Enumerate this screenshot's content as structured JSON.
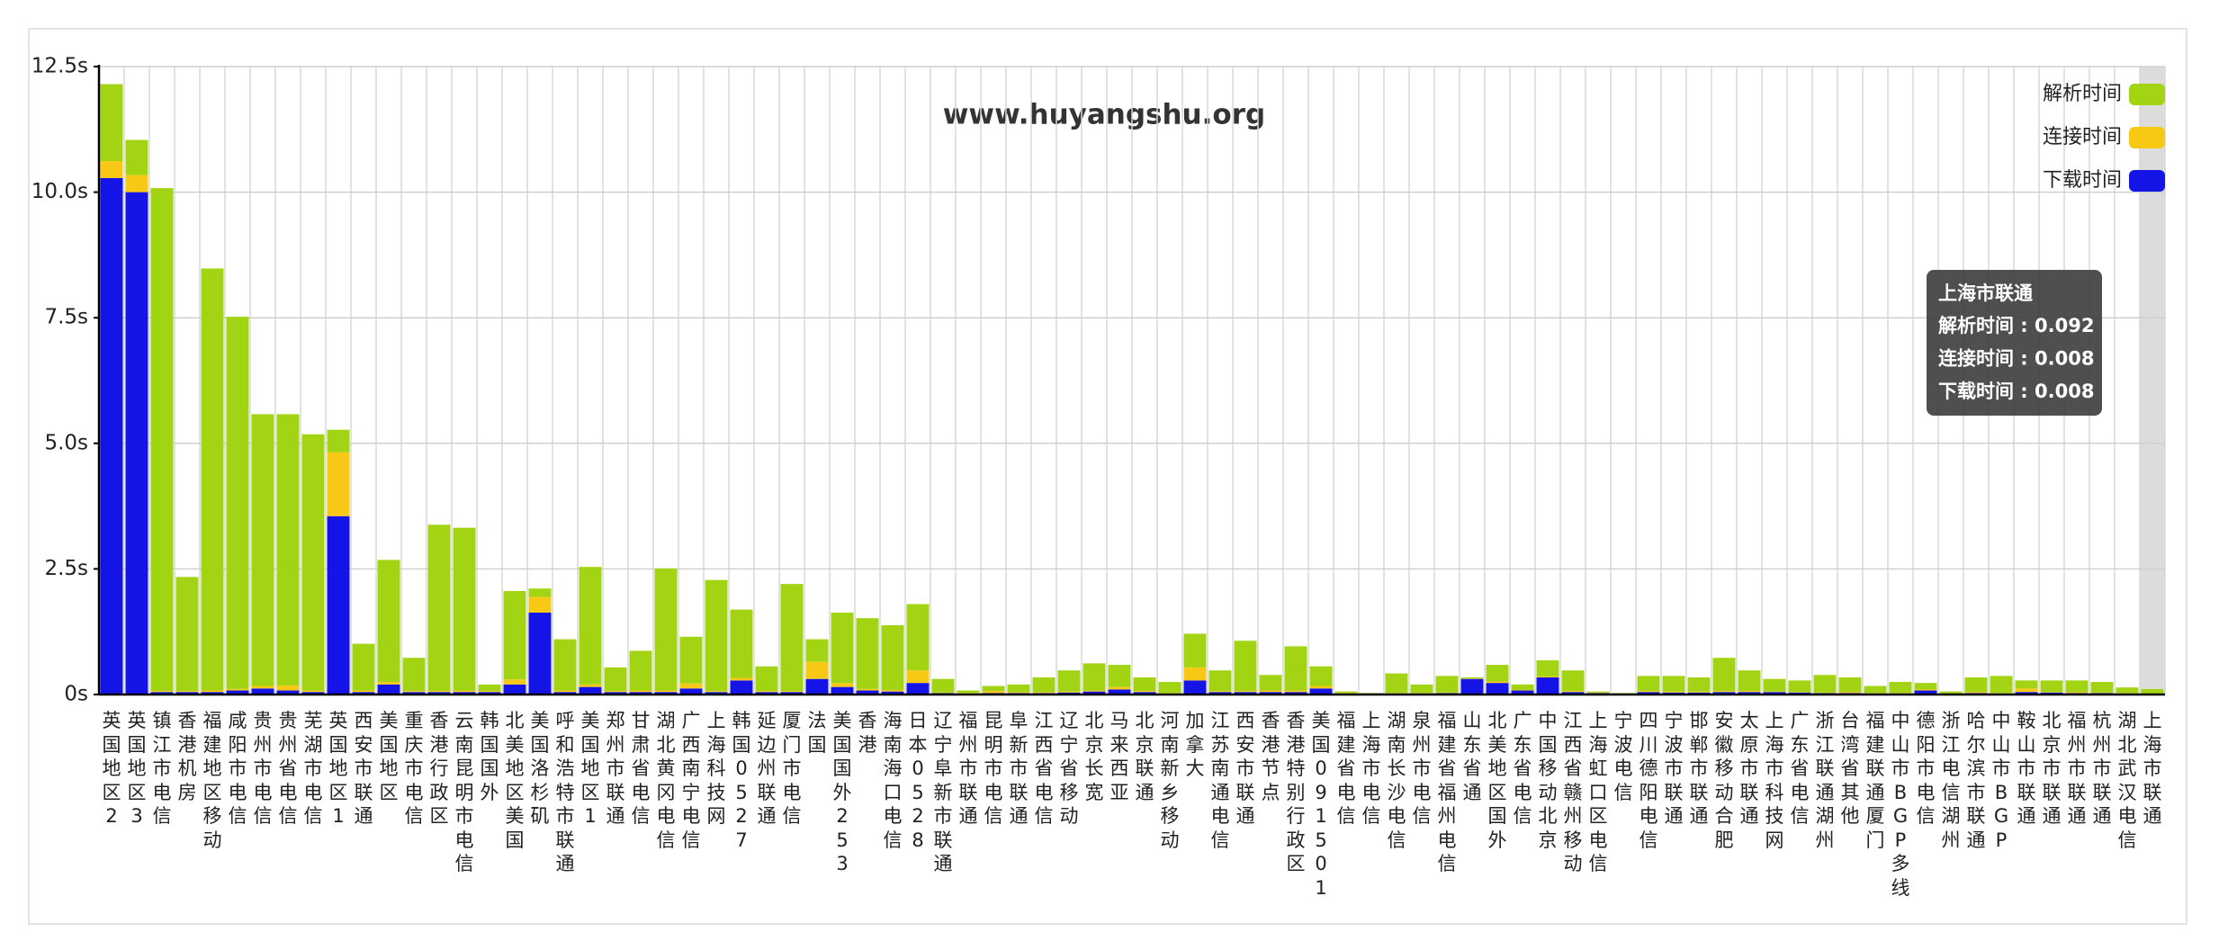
{
  "chart_data": {
    "type": "stacked_bar",
    "annotation": "www.huyangshu.org",
    "categories": [
      "英国地区2",
      "英国地区3",
      "镇江市电信",
      "香港机房",
      "福建地区移动",
      "咸阳市电信",
      "贵州市电信",
      "贵州省电信",
      "芜湖市电信",
      "英国地区1",
      "西安市联通",
      "美国地区",
      "重庆市电信",
      "香港行政区",
      "云南昆明市电信",
      "韩国国外",
      "北美地区美国",
      "美国洛杉矶",
      "呼和浩特市联通",
      "美国地区1",
      "郑州市联通",
      "甘肃省电信",
      "湖北黄冈电信",
      "广西南宁电信",
      "上海科技网",
      "韩国0527",
      "延边州联通",
      "厦门市电信",
      "法国",
      "美国国外253",
      "香港",
      "海南海口电信",
      "日本0528",
      "辽宁阜新市联通",
      "福州市联通",
      "昆明市电信",
      "阜新市联通",
      "江西省电信",
      "辽宁省移动",
      "北京长宽",
      "马来西亚",
      "北京联通",
      "河南新乡移动",
      "加拿大",
      "江苏南通电信",
      "西安市联通",
      "香港节点",
      "香港特别行政区",
      "美国091501",
      "福建省电信",
      "上海市电信",
      "湖南长沙电信",
      "泉州市电信",
      "福建省福州电信",
      "山东省通",
      "北美地区国外",
      "广东省电信",
      "中国移动北京",
      "江西省赣州移动",
      "上海虹口区电信",
      "宁波电信",
      "四川德阳电信",
      "宁波市联通",
      "邯郸市联通",
      "安徽移动合肥",
      "太原市联通",
      "上海市科技网",
      "广东省电信",
      "浙江联通湖州",
      "台湾省其他",
      "福建联通厦门",
      "中山市BGP多线",
      "德阳市电信",
      "浙江电信湖州",
      "哈尔滨市联通",
      "中山市BGP",
      "鞍山市联通",
      "北京市联通",
      "福州市联通",
      "杭州市联通",
      "湖北武汉电信",
      "上海市联通"
    ],
    "series": [
      {
        "name": "下载时间",
        "color": "#1414e6",
        "values": [
          10.28,
          10.0,
          0.05,
          0.05,
          0.05,
          0.08,
          0.12,
          0.08,
          0.05,
          3.55,
          0.05,
          0.2,
          0.05,
          0.05,
          0.05,
          0.05,
          0.2,
          1.63,
          0.05,
          0.15,
          0.05,
          0.05,
          0.05,
          0.12,
          0.05,
          0.28,
          0.05,
          0.05,
          0.31,
          0.15,
          0.08,
          0.06,
          0.23,
          0.03,
          0.02,
          0.03,
          0.03,
          0.03,
          0.04,
          0.06,
          0.1,
          0.05,
          0.02,
          0.28,
          0.05,
          0.05,
          0.05,
          0.05,
          0.12,
          0.02,
          0.01,
          0.02,
          0.02,
          0.03,
          0.31,
          0.23,
          0.08,
          0.34,
          0.05,
          0.03,
          0.01,
          0.05,
          0.04,
          0.04,
          0.05,
          0.05,
          0.05,
          0.04,
          0.03,
          0.03,
          0.02,
          0.02,
          0.08,
          0.01,
          0.03,
          0.02,
          0.05,
          0.04,
          0.03,
          0.03,
          0.02,
          0.008
        ]
      },
      {
        "name": "连接时间",
        "color": "#f7c914",
        "values": [
          0.34,
          0.34,
          0.02,
          0.02,
          0.03,
          0.03,
          0.05,
          0.1,
          0.03,
          1.27,
          0.03,
          0.05,
          0.02,
          0.02,
          0.03,
          0.02,
          0.1,
          0.31,
          0.03,
          0.05,
          0.02,
          0.03,
          0.03,
          0.1,
          0.02,
          0.05,
          0.02,
          0.02,
          0.34,
          0.08,
          0.03,
          0.03,
          0.25,
          0.01,
          0.01,
          0.04,
          0.02,
          0.02,
          0.02,
          0.02,
          0.05,
          0.02,
          0.01,
          0.26,
          0.02,
          0.02,
          0.03,
          0.03,
          0.05,
          0.01,
          0.01,
          0.01,
          0.01,
          0.01,
          0.01,
          0.03,
          0.01,
          0.02,
          0.02,
          0.01,
          0.01,
          0.02,
          0.02,
          0.02,
          0.02,
          0.02,
          0.01,
          0.01,
          0.01,
          0.02,
          0.01,
          0.01,
          0.02,
          0.01,
          0.02,
          0.01,
          0.07,
          0.01,
          0.02,
          0.01,
          0.01,
          0.008
        ]
      },
      {
        "name": "解析时间",
        "color": "#a3d414",
        "values": [
          1.53,
          0.7,
          10.01,
          2.27,
          8.4,
          7.41,
          5.41,
          5.4,
          5.1,
          0.45,
          0.93,
          2.43,
          0.66,
          3.31,
          3.24,
          0.13,
          1.76,
          0.17,
          1.02,
          2.34,
          0.47,
          0.79,
          2.43,
          0.93,
          2.21,
          1.36,
          0.49,
          2.13,
          0.45,
          1.4,
          1.41,
          1.29,
          1.32,
          0.27,
          0.05,
          0.1,
          0.15,
          0.29,
          0.42,
          0.54,
          0.44,
          0.27,
          0.22,
          0.67,
          0.41,
          1.0,
          0.31,
          0.88,
          0.39,
          0.03,
          0.01,
          0.39,
          0.17,
          0.33,
          0.02,
          0.33,
          0.11,
          0.32,
          0.41,
          0.02,
          0.01,
          0.3,
          0.31,
          0.28,
          0.66,
          0.41,
          0.25,
          0.23,
          0.35,
          0.29,
          0.14,
          0.22,
          0.13,
          0.04,
          0.29,
          0.34,
          0.16,
          0.23,
          0.23,
          0.21,
          0.11,
          0.092
        ]
      }
    ],
    "ylim": [
      0,
      12.5
    ],
    "yticks": [
      {
        "value": 0,
        "label": "0s"
      },
      {
        "value": 2.5,
        "label": "2.5s"
      },
      {
        "value": 5,
        "label": "5.0s"
      },
      {
        "value": 7.5,
        "label": "7.5s"
      },
      {
        "value": 10,
        "label": "10.0s"
      },
      {
        "value": 12.5,
        "label": "12.5s"
      }
    ],
    "grid": true,
    "legend": "top-right",
    "tooltip": {
      "title": "上海市联通",
      "rows": [
        "解析时间 : 0.092",
        "连接时间 : 0.008",
        "下载时间 : 0.008"
      ]
    }
  }
}
